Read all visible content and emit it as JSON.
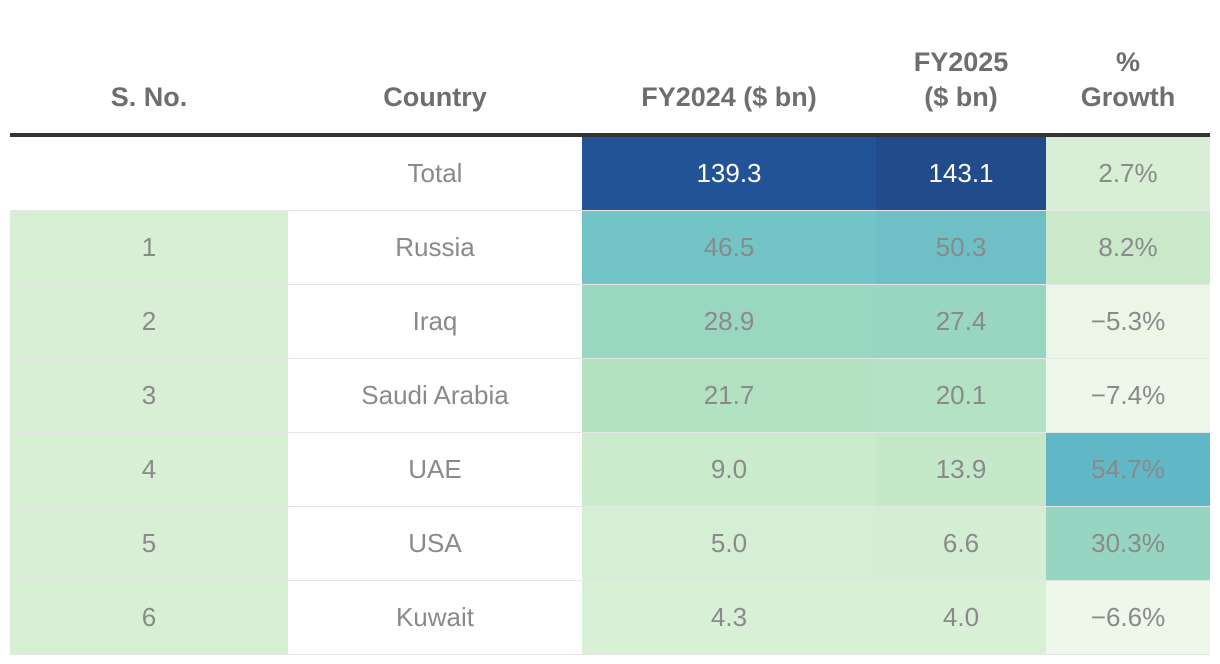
{
  "chart_data": {
    "type": "table",
    "columns": [
      "S. No.",
      "Country",
      "FY2024 ($ bn)",
      "FY2025 ($ bn)",
      "% Growth"
    ],
    "header_lines": [
      [
        "S. No."
      ],
      [
        "Country"
      ],
      [
        "FY2024 ($ bn)"
      ],
      [
        "FY2025",
        "($ bn)"
      ],
      [
        "%",
        "Growth"
      ]
    ],
    "rows": [
      {
        "sno": "",
        "country": "Total",
        "fy2024": "139.3",
        "fy2025": "143.1",
        "growth": "2.7%"
      },
      {
        "sno": "1",
        "country": "Russia",
        "fy2024": "46.5",
        "fy2025": "50.3",
        "growth": "8.2%"
      },
      {
        "sno": "2",
        "country": "Iraq",
        "fy2024": "28.9",
        "fy2025": "27.4",
        "growth": "−5.3%"
      },
      {
        "sno": "3",
        "country": "Saudi Arabia",
        "fy2024": "21.7",
        "fy2025": "20.1",
        "growth": "−7.4%"
      },
      {
        "sno": "4",
        "country": "UAE",
        "fy2024": "9.0",
        "fy2025": "13.9",
        "growth": "54.7%"
      },
      {
        "sno": "5",
        "country": "USA",
        "fy2024": "5.0",
        "fy2025": "6.6",
        "growth": "30.3%"
      },
      {
        "sno": "6",
        "country": "Kuwait",
        "fy2024": "4.3",
        "fy2025": "4.0",
        "growth": "−6.6%"
      }
    ],
    "cell_colors": [
      [
        "#ffffff",
        "#ffffff",
        "#225396",
        "#224b8c",
        "#d8efd5"
      ],
      [
        "#d8efd5",
        "#ffffff",
        "#72c4c6",
        "#6fbfc7",
        "#c9e9c8"
      ],
      [
        "#d8efd5",
        "#ffffff",
        "#9ad7c1",
        "#98d6c1",
        "#ebf6e6"
      ],
      [
        "#d8efd5",
        "#ffffff",
        "#b2e2c2",
        "#b4e2c4",
        "#eef8ea"
      ],
      [
        "#d8efd5",
        "#ffffff",
        "#cbebcd",
        "#c4e8c8",
        "#60b7c6"
      ],
      [
        "#d8efd5",
        "#ffffff",
        "#d5efd4",
        "#d3eed2",
        "#96d5c2"
      ],
      [
        "#d8efd5",
        "#ffffff",
        "#d8f0d6",
        "#d8f0d6",
        "#eef8ea"
      ]
    ],
    "light_text_color": "#ffffff",
    "text_color": "#8a8a8a",
    "header_color": "#6e6e6e",
    "rule_color": "#333333"
  }
}
